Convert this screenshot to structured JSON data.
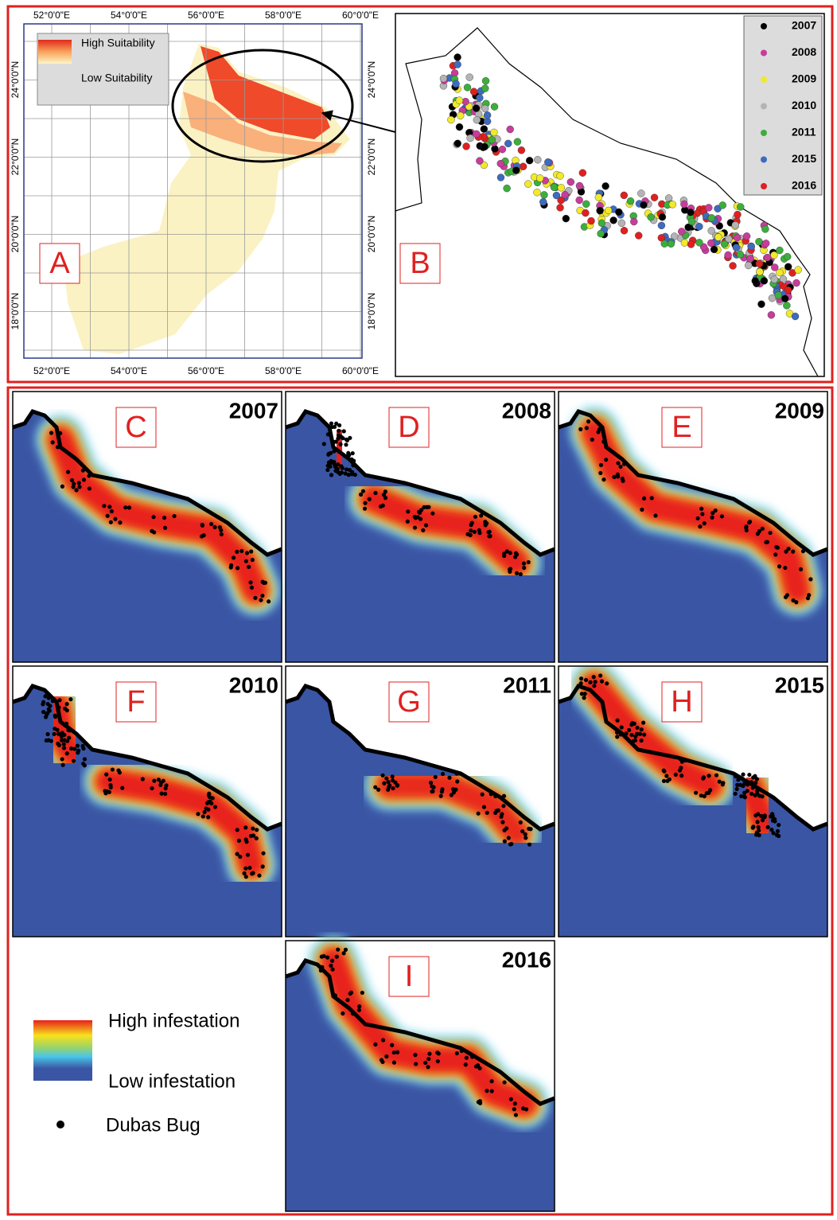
{
  "panel_a": {
    "label": "A",
    "x_labels": [
      "52°0'0\"E",
      "54°0'0\"E",
      "56°0'0\"E",
      "58°0'0\"E",
      "60°0'0\"E"
    ],
    "y_labels": [
      "24°0'0\"N",
      "22°0'0\"N",
      "20°0'0\"N",
      "18°0'0\"N"
    ],
    "legend": {
      "high": "High Suitability",
      "low": "Low Suitability"
    }
  },
  "panel_b": {
    "label": "B",
    "legend": [
      {
        "year": "2007",
        "color": "#000000"
      },
      {
        "year": "2008",
        "color": "#c83c9c"
      },
      {
        "year": "2009",
        "color": "#f2e92a"
      },
      {
        "year": "2010",
        "color": "#b4b4b4"
      },
      {
        "year": "2011",
        "color": "#3cae3c"
      },
      {
        "year": "2015",
        "color": "#3c6cc0"
      },
      {
        "year": "2016",
        "color": "#e02020"
      }
    ]
  },
  "heatmaps": [
    {
      "label": "C",
      "year": "2007"
    },
    {
      "label": "D",
      "year": "2008"
    },
    {
      "label": "E",
      "year": "2009"
    },
    {
      "label": "F",
      "year": "2010"
    },
    {
      "label": "G",
      "year": "2011"
    },
    {
      "label": "H",
      "year": "2015"
    },
    {
      "label": "I",
      "year": "2016"
    }
  ],
  "legend": {
    "high": "High infestation",
    "low": "Low infestation",
    "points": "Dubas Bug"
  }
}
